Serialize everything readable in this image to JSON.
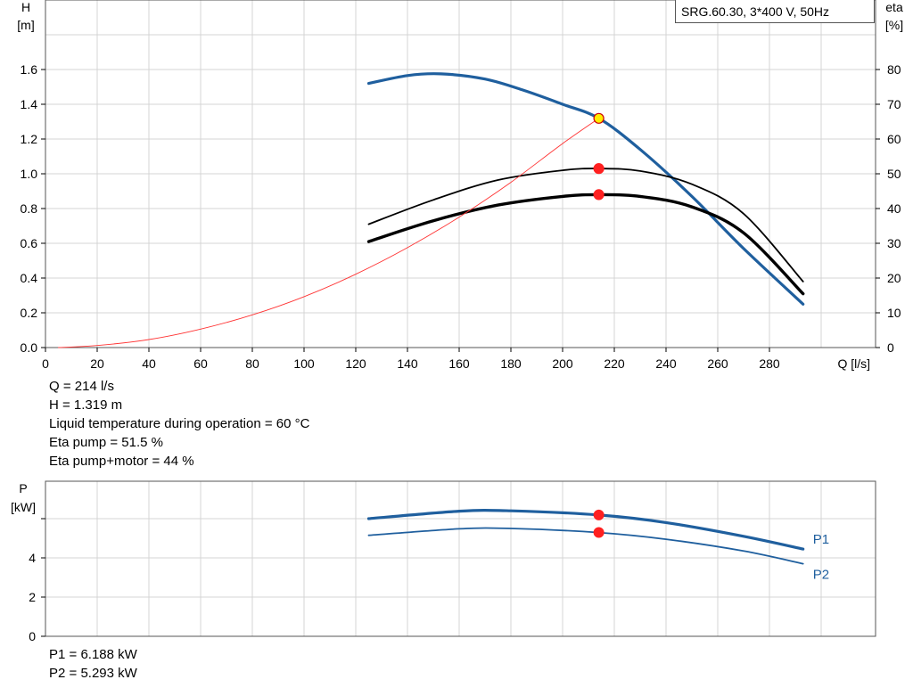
{
  "chart_data": [
    {
      "type": "line",
      "title": "SRG.60.30, 3*400 V, 50Hz",
      "xlabel": "Q [l/s]",
      "ylabel_left_title": "H",
      "ylabel_left_unit": "[m]",
      "ylabel_right_title": "eta",
      "ylabel_right_unit": "[%]",
      "xlim": [
        0,
        300
      ],
      "ylim_left": [
        0,
        1.8
      ],
      "ylim_right": [
        0,
        90
      ],
      "x_ticks": [
        "0",
        "20",
        "40",
        "60",
        "80",
        "100",
        "120",
        "140",
        "160",
        "180",
        "200",
        "220",
        "240",
        "260",
        "280"
      ],
      "y_left_ticks": [
        "0.0",
        "0.2",
        "0.4",
        "0.6",
        "0.8",
        "1.0",
        "1.2",
        "1.4",
        "1.6"
      ],
      "y_right_ticks": [
        "0",
        "10",
        "20",
        "30",
        "40",
        "50",
        "60",
        "70",
        "80"
      ],
      "grid": true,
      "series": [
        {
          "name": "",
          "axis": "left",
          "color": "#1f5f9e",
          "width": 3.2,
          "x": [
            125,
            140,
            153,
            170,
            185,
            200,
            214,
            230,
            250,
            270,
            293
          ],
          "y": [
            1.52,
            1.565,
            1.575,
            1.545,
            1.48,
            1.4,
            1.319,
            1.14,
            0.87,
            0.57,
            0.25
          ]
        },
        {
          "name": "",
          "axis": "right",
          "color": "#000000",
          "width": 1.8,
          "x": [
            125,
            150,
            175,
            200,
            214,
            230,
            250,
            270,
            293
          ],
          "y": [
            35.5,
            42.5,
            48.2,
            51.0,
            51.5,
            50.8,
            47.0,
            38.5,
            19.0
          ]
        },
        {
          "name": "",
          "axis": "right",
          "color": "#000000",
          "width": 3.4,
          "x": [
            125,
            150,
            175,
            200,
            214,
            230,
            250,
            270,
            293
          ],
          "y": [
            30.5,
            36.5,
            41.0,
            43.5,
            44.0,
            43.5,
            40.5,
            33.0,
            15.5
          ]
        },
        {
          "name": "",
          "axis": "left",
          "color": "#ff3333",
          "width": 0.9,
          "x": [
            5,
            20,
            40,
            60,
            80,
            100,
            120,
            140,
            160,
            180,
            200,
            214
          ],
          "y": [
            0.0,
            0.012,
            0.046,
            0.106,
            0.188,
            0.293,
            0.422,
            0.575,
            0.751,
            0.951,
            1.174,
            1.319
          ]
        }
      ],
      "markers": [
        {
          "axis": "left",
          "x": 214,
          "y": 1.319,
          "fill": "#ffee00",
          "stroke": "#cc0000"
        },
        {
          "axis": "right",
          "x": 214,
          "y": 51.5,
          "fill": "#ff2020",
          "stroke": "#ff2020"
        },
        {
          "axis": "right",
          "x": 214,
          "y": 44.0,
          "fill": "#ff2020",
          "stroke": "#ff2020"
        }
      ]
    },
    {
      "type": "line",
      "xlabel": "",
      "ylabel_title": "P",
      "ylabel_unit": "[kW]",
      "xlim": [
        0,
        300
      ],
      "ylim": [
        0,
        8
      ],
      "y_ticks": [
        "0",
        "2",
        "4"
      ],
      "grid": true,
      "series": [
        {
          "name": "P1",
          "color": "#1f5f9e",
          "width": 3.2,
          "x": [
            125,
            160,
            180,
            214,
            240,
            270,
            293
          ],
          "y": [
            6.0,
            6.38,
            6.4,
            6.188,
            5.8,
            5.1,
            4.45
          ]
        },
        {
          "name": "P2",
          "color": "#1f5f9e",
          "width": 1.8,
          "x": [
            125,
            160,
            180,
            214,
            240,
            270,
            293
          ],
          "y": [
            5.15,
            5.48,
            5.5,
            5.293,
            4.95,
            4.35,
            3.7
          ]
        }
      ],
      "markers": [
        {
          "x": 214,
          "y": 6.188,
          "fill": "#ff2020",
          "stroke": "#ff2020"
        },
        {
          "x": 214,
          "y": 5.293,
          "fill": "#ff2020",
          "stroke": "#ff2020"
        }
      ]
    }
  ],
  "info_top": [
    "Q = 214 l/s",
    "H = 1.319 m",
    "Liquid temperature during operation = 60 °C",
    "Eta pump = 51.5 %",
    "Eta pump+motor = 44 %"
  ],
  "info_bottom": [
    "P1 = 6.188 kW",
    "P2 = 5.293 kW"
  ]
}
